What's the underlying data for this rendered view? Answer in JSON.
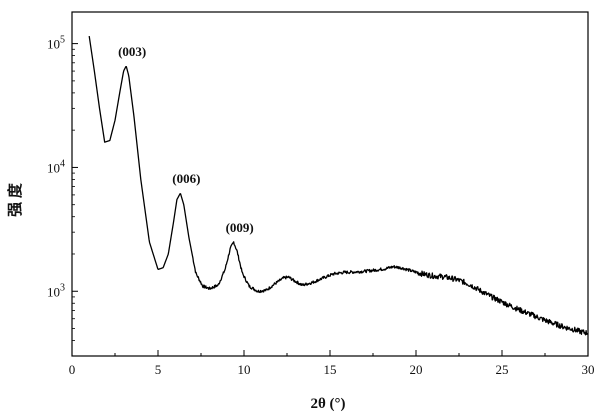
{
  "chart_data": {
    "type": "line",
    "title": "",
    "xlabel": "2θ (°)",
    "ylabel": "强 度",
    "xlim": [
      0,
      30
    ],
    "ylim": [
      300,
      180000
    ],
    "yscale": "log",
    "grid": false,
    "legend": "none",
    "xticks": [
      0,
      5,
      10,
      15,
      20,
      25,
      30
    ],
    "yticks": [
      {
        "value": 1000,
        "base": "10",
        "exp": "3"
      },
      {
        "value": 10000,
        "base": "10",
        "exp": "4"
      },
      {
        "value": 100000,
        "base": "10",
        "exp": "5"
      }
    ],
    "line_color": "#000000",
    "series": [
      {
        "x": [
          1.0,
          1.3,
          1.6,
          1.9,
          2.2,
          2.5,
          2.8,
          3.0,
          3.15,
          3.3,
          3.6,
          4.0,
          4.5,
          5.0,
          5.3,
          5.6,
          5.9,
          6.1,
          6.3,
          6.5,
          6.8,
          7.2,
          7.6,
          8.0,
          8.5,
          8.9,
          9.2,
          9.4,
          9.6,
          9.9,
          10.3,
          10.8,
          11.3,
          11.8,
          12.3,
          12.6,
          12.9,
          13.4,
          14.0,
          14.6,
          15.2,
          15.8,
          16.4,
          17.0,
          17.6,
          18.2,
          18.7,
          19.2,
          19.8,
          20.4,
          21.0,
          21.6,
          22.2,
          22.7,
          23.2,
          23.8,
          24.4,
          25.0,
          25.6,
          26.2,
          26.8,
          27.4,
          28.0,
          28.6,
          29.2,
          29.6,
          30.0
        ],
        "y": [
          115000,
          60000,
          30000,
          16000,
          16500,
          24000,
          42000,
          60000,
          66000,
          55000,
          26000,
          8000,
          2500,
          1500,
          1550,
          2000,
          3600,
          5500,
          6200,
          5000,
          2700,
          1400,
          1100,
          1050,
          1120,
          1500,
          2200,
          2500,
          2100,
          1400,
          1100,
          1000,
          1020,
          1150,
          1280,
          1300,
          1220,
          1120,
          1180,
          1280,
          1380,
          1420,
          1430,
          1450,
          1480,
          1520,
          1580,
          1540,
          1450,
          1380,
          1330,
          1310,
          1260,
          1200,
          1120,
          1000,
          900,
          820,
          750,
          690,
          640,
          590,
          550,
          515,
          490,
          470,
          460
        ]
      }
    ],
    "annotations": [
      {
        "text": "(003)",
        "x": 3.15,
        "y": 66000
      },
      {
        "text": "(006)",
        "x": 6.3,
        "y": 6200
      },
      {
        "text": "(009)",
        "x": 9.4,
        "y": 2500
      }
    ]
  }
}
